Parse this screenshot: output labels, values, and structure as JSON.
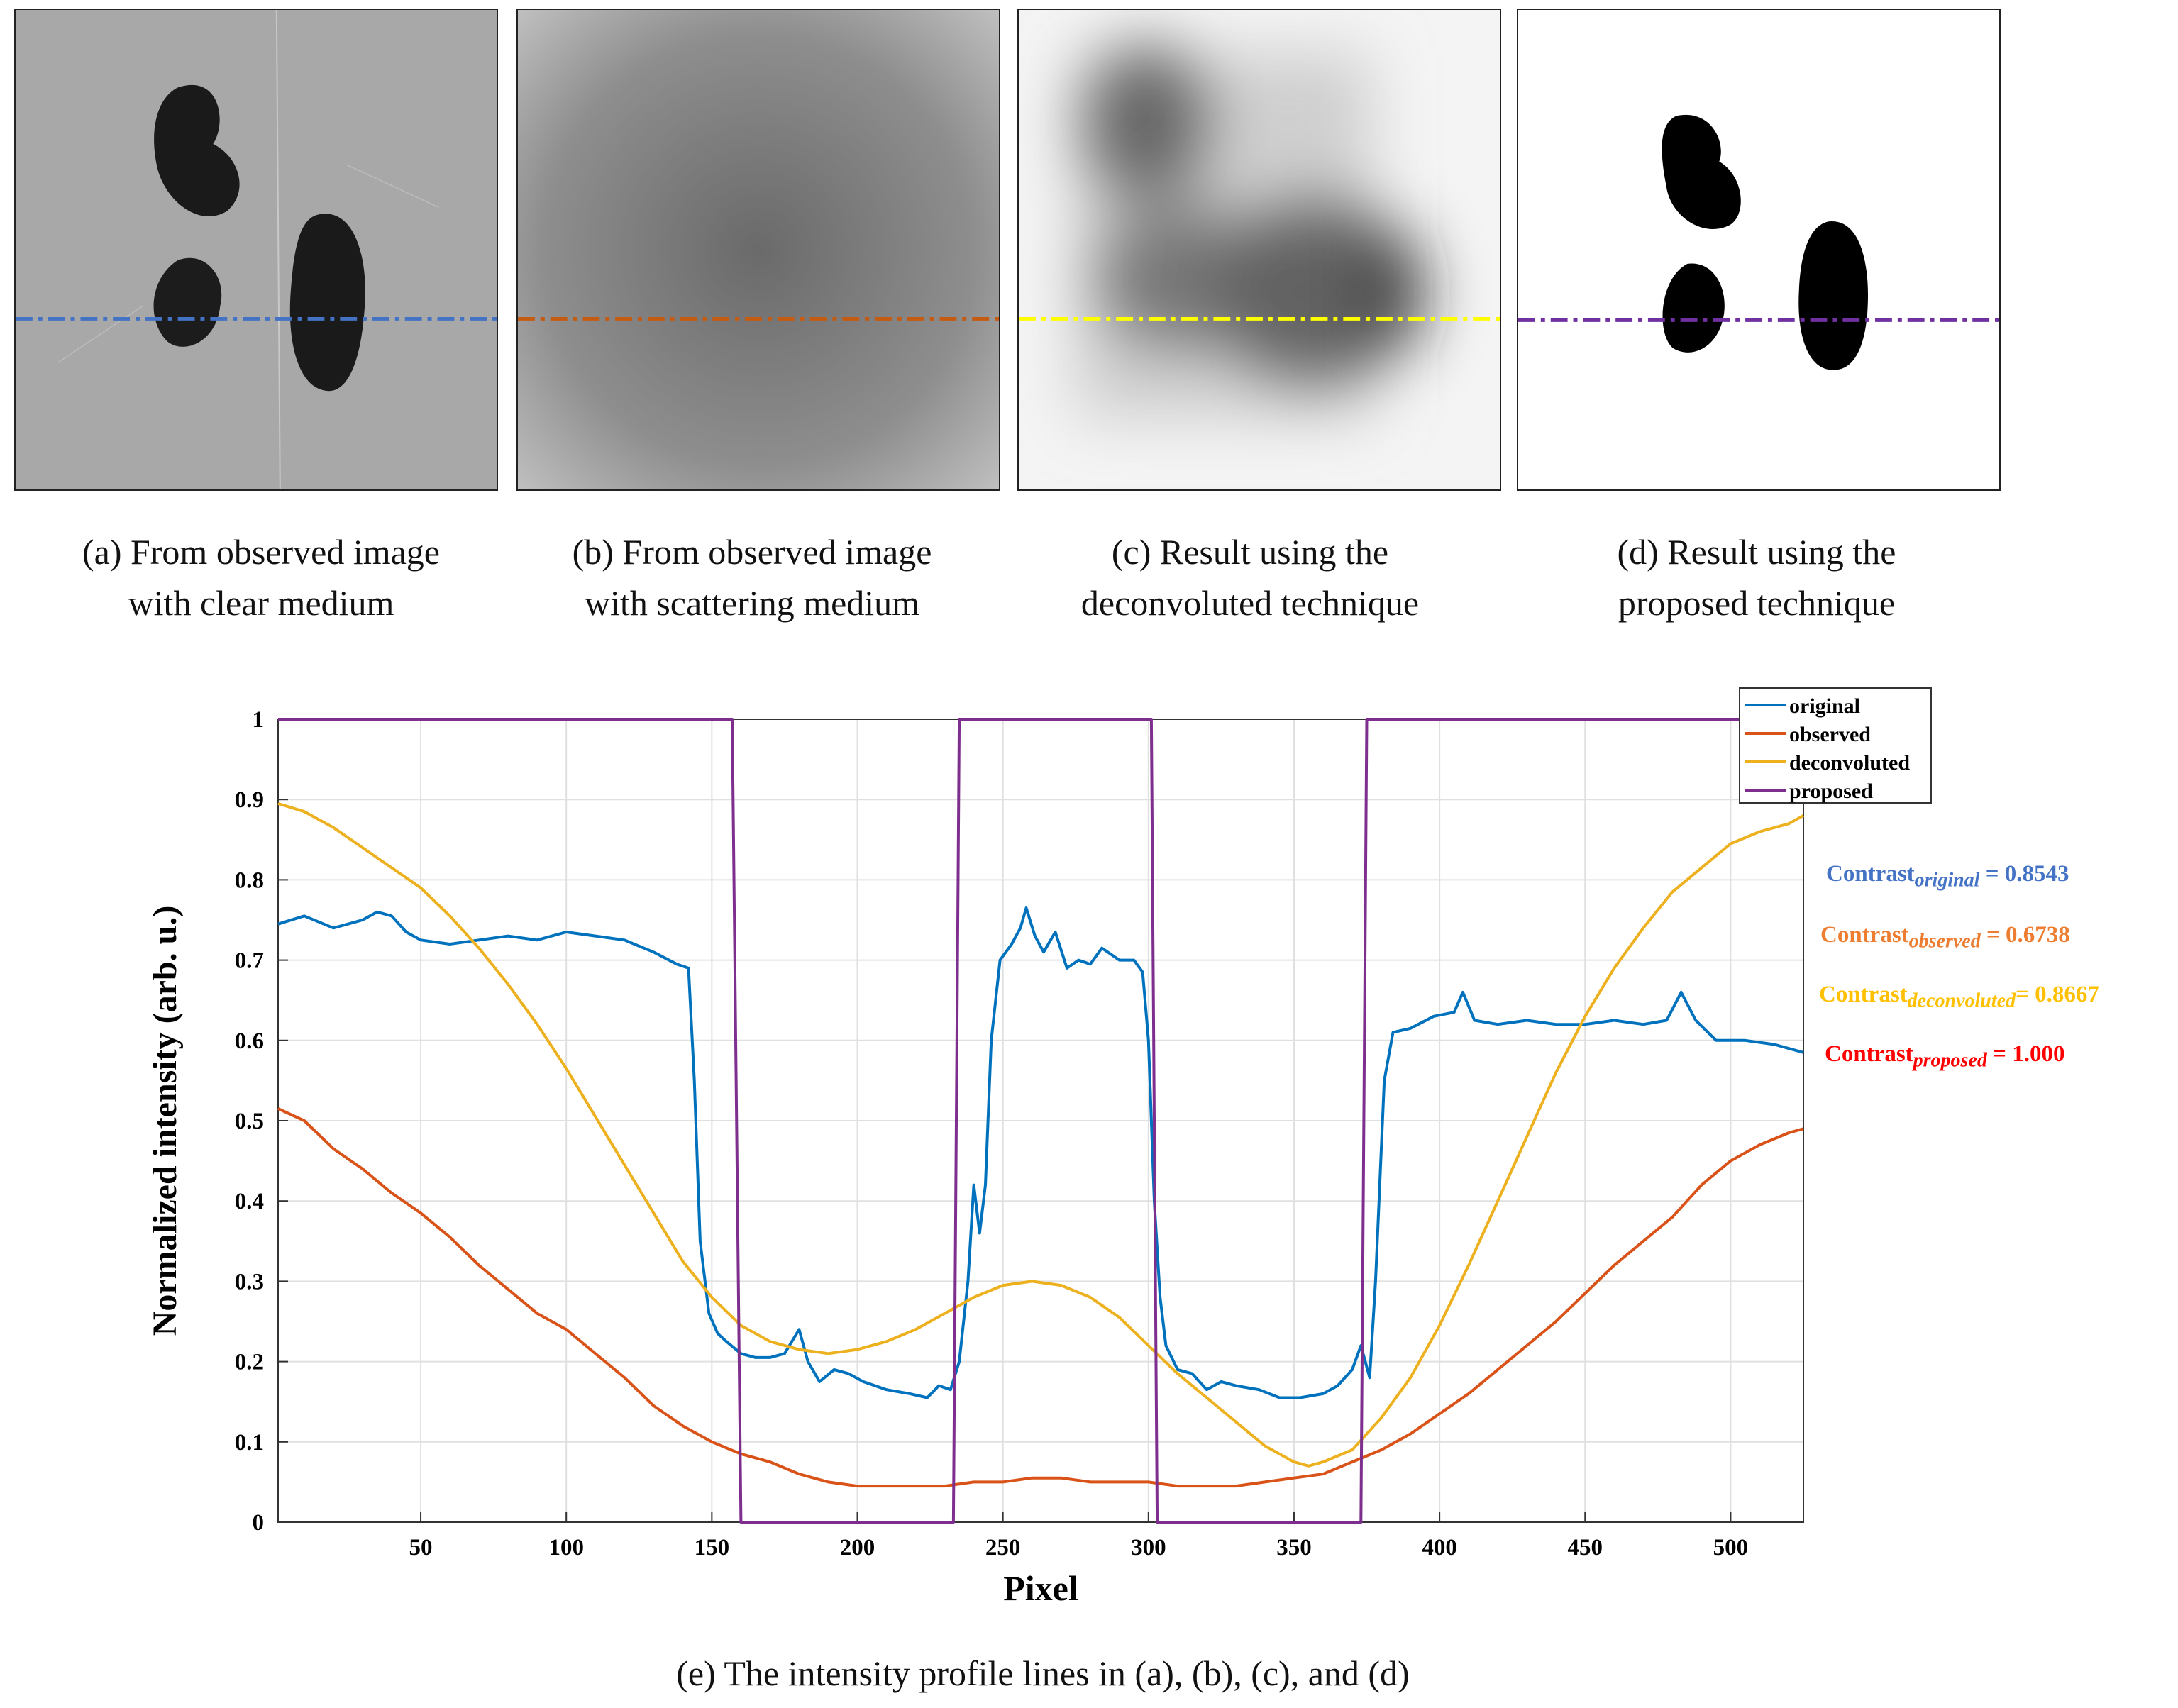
{
  "panels": [
    {
      "id": "a",
      "line1": "(a) From observed image",
      "line2": "with clear medium",
      "line_color": "#4472c4"
    },
    {
      "id": "b",
      "line1": "(b) From observed image",
      "line2": "with scattering medium",
      "line_color": "#c55a11"
    },
    {
      "id": "c",
      "line1": "(c) Result using the",
      "line2": "deconvoluted technique",
      "line_color": "#ffff00"
    },
    {
      "id": "d",
      "line1": "(d) Result using the",
      "line2": "proposed technique",
      "line_color": "#7030a0"
    }
  ],
  "figure_caption": "(e) The intensity profile lines in (a), (b), (c), and (d)",
  "contrasts": [
    {
      "prefix": "Contrast",
      "sub": "original",
      "value": "= 0.8543",
      "color": "#4472c4"
    },
    {
      "prefix": "Contrast",
      "sub": "observed",
      "value": "= 0.6738",
      "color": "#ed7d31"
    },
    {
      "prefix": "Contrast",
      "sub": "deconvoluted",
      "value": "= 0.8667",
      "color": "#ffc000"
    },
    {
      "prefix": "Contrast",
      "sub": "proposed",
      "value": "= 1.000",
      "color": "#ff0000"
    }
  ],
  "chart_data": {
    "type": "line",
    "title": "",
    "xlabel": "Pixel",
    "ylabel": "Normalized intensity (arb. u.)",
    "xlim": [
      1,
      525
    ],
    "ylim": [
      0,
      1
    ],
    "xticks": [
      50,
      100,
      150,
      200,
      250,
      300,
      350,
      400,
      450,
      500
    ],
    "yticks": [
      0,
      0.1,
      0.2,
      0.3,
      0.4,
      0.5,
      0.6,
      0.7,
      0.8,
      0.9,
      1
    ],
    "ytick_labels": [
      "0",
      "0.1",
      "0.2",
      "0.3",
      "0.4",
      "0.5",
      "0.6",
      "0.7",
      "0.8",
      "0.9",
      "1"
    ],
    "grid": true,
    "legend": "top-right",
    "series": [
      {
        "name": "original",
        "color": "#0072bd",
        "points": [
          [
            1,
            0.745
          ],
          [
            10,
            0.755
          ],
          [
            20,
            0.74
          ],
          [
            30,
            0.75
          ],
          [
            35,
            0.76
          ],
          [
            40,
            0.755
          ],
          [
            45,
            0.735
          ],
          [
            50,
            0.725
          ],
          [
            60,
            0.72
          ],
          [
            70,
            0.725
          ],
          [
            80,
            0.73
          ],
          [
            90,
            0.725
          ],
          [
            100,
            0.735
          ],
          [
            110,
            0.73
          ],
          [
            120,
            0.725
          ],
          [
            130,
            0.71
          ],
          [
            138,
            0.695
          ],
          [
            142,
            0.69
          ],
          [
            144,
            0.55
          ],
          [
            146,
            0.35
          ],
          [
            149,
            0.26
          ],
          [
            152,
            0.235
          ],
          [
            155,
            0.225
          ],
          [
            160,
            0.21
          ],
          [
            165,
            0.205
          ],
          [
            170,
            0.205
          ],
          [
            175,
            0.21
          ],
          [
            180,
            0.24
          ],
          [
            183,
            0.2
          ],
          [
            187,
            0.175
          ],
          [
            192,
            0.19
          ],
          [
            197,
            0.185
          ],
          [
            202,
            0.175
          ],
          [
            210,
            0.165
          ],
          [
            218,
            0.16
          ],
          [
            224,
            0.155
          ],
          [
            228,
            0.17
          ],
          [
            232,
            0.165
          ],
          [
            235,
            0.2
          ],
          [
            238,
            0.3
          ],
          [
            240,
            0.42
          ],
          [
            242,
            0.36
          ],
          [
            244,
            0.42
          ],
          [
            246,
            0.6
          ],
          [
            249,
            0.7
          ],
          [
            253,
            0.72
          ],
          [
            256,
            0.74
          ],
          [
            258,
            0.765
          ],
          [
            261,
            0.73
          ],
          [
            264,
            0.71
          ],
          [
            268,
            0.735
          ],
          [
            272,
            0.69
          ],
          [
            276,
            0.7
          ],
          [
            280,
            0.695
          ],
          [
            284,
            0.715
          ],
          [
            290,
            0.7
          ],
          [
            295,
            0.7
          ],
          [
            298,
            0.685
          ],
          [
            300,
            0.6
          ],
          [
            302,
            0.4
          ],
          [
            304,
            0.28
          ],
          [
            306,
            0.22
          ],
          [
            310,
            0.19
          ],
          [
            315,
            0.185
          ],
          [
            320,
            0.165
          ],
          [
            325,
            0.175
          ],
          [
            330,
            0.17
          ],
          [
            338,
            0.165
          ],
          [
            345,
            0.155
          ],
          [
            352,
            0.155
          ],
          [
            360,
            0.16
          ],
          [
            365,
            0.17
          ],
          [
            370,
            0.19
          ],
          [
            373,
            0.22
          ],
          [
            376,
            0.18
          ],
          [
            378,
            0.3
          ],
          [
            381,
            0.55
          ],
          [
            384,
            0.61
          ],
          [
            390,
            0.615
          ],
          [
            398,
            0.63
          ],
          [
            405,
            0.635
          ],
          [
            408,
            0.66
          ],
          [
            412,
            0.625
          ],
          [
            420,
            0.62
          ],
          [
            430,
            0.625
          ],
          [
            440,
            0.62
          ],
          [
            450,
            0.62
          ],
          [
            460,
            0.625
          ],
          [
            470,
            0.62
          ],
          [
            478,
            0.625
          ],
          [
            483,
            0.66
          ],
          [
            488,
            0.625
          ],
          [
            495,
            0.6
          ],
          [
            505,
            0.6
          ],
          [
            515,
            0.595
          ],
          [
            525,
            0.585
          ]
        ]
      },
      {
        "name": "observed",
        "color": "#d95319",
        "points": [
          [
            1,
            0.515
          ],
          [
            10,
            0.5
          ],
          [
            20,
            0.465
          ],
          [
            30,
            0.44
          ],
          [
            40,
            0.41
          ],
          [
            50,
            0.385
          ],
          [
            60,
            0.355
          ],
          [
            70,
            0.32
          ],
          [
            80,
            0.29
          ],
          [
            90,
            0.26
          ],
          [
            100,
            0.24
          ],
          [
            110,
            0.21
          ],
          [
            120,
            0.18
          ],
          [
            130,
            0.145
          ],
          [
            140,
            0.12
          ],
          [
            150,
            0.1
          ],
          [
            160,
            0.085
          ],
          [
            170,
            0.075
          ],
          [
            180,
            0.06
          ],
          [
            190,
            0.05
          ],
          [
            200,
            0.045
          ],
          [
            210,
            0.045
          ],
          [
            220,
            0.045
          ],
          [
            230,
            0.045
          ],
          [
            240,
            0.05
          ],
          [
            250,
            0.05
          ],
          [
            260,
            0.055
          ],
          [
            270,
            0.055
          ],
          [
            280,
            0.05
          ],
          [
            290,
            0.05
          ],
          [
            300,
            0.05
          ],
          [
            310,
            0.045
          ],
          [
            320,
            0.045
          ],
          [
            330,
            0.045
          ],
          [
            340,
            0.05
          ],
          [
            350,
            0.055
          ],
          [
            360,
            0.06
          ],
          [
            370,
            0.075
          ],
          [
            380,
            0.09
          ],
          [
            390,
            0.11
          ],
          [
            400,
            0.135
          ],
          [
            410,
            0.16
          ],
          [
            420,
            0.19
          ],
          [
            430,
            0.22
          ],
          [
            440,
            0.25
          ],
          [
            450,
            0.285
          ],
          [
            460,
            0.32
          ],
          [
            470,
            0.35
          ],
          [
            480,
            0.38
          ],
          [
            490,
            0.42
          ],
          [
            500,
            0.45
          ],
          [
            510,
            0.47
          ],
          [
            520,
            0.485
          ],
          [
            525,
            0.49
          ]
        ]
      },
      {
        "name": "deconvoluted",
        "color": "#edb120",
        "points": [
          [
            1,
            0.895
          ],
          [
            10,
            0.885
          ],
          [
            20,
            0.865
          ],
          [
            30,
            0.84
          ],
          [
            40,
            0.815
          ],
          [
            50,
            0.79
          ],
          [
            60,
            0.755
          ],
          [
            70,
            0.715
          ],
          [
            80,
            0.67
          ],
          [
            90,
            0.62
          ],
          [
            100,
            0.565
          ],
          [
            110,
            0.505
          ],
          [
            120,
            0.445
          ],
          [
            130,
            0.385
          ],
          [
            140,
            0.325
          ],
          [
            150,
            0.28
          ],
          [
            160,
            0.245
          ],
          [
            170,
            0.225
          ],
          [
            180,
            0.215
          ],
          [
            190,
            0.21
          ],
          [
            200,
            0.215
          ],
          [
            210,
            0.225
          ],
          [
            220,
            0.24
          ],
          [
            230,
            0.26
          ],
          [
            240,
            0.28
          ],
          [
            250,
            0.295
          ],
          [
            260,
            0.3
          ],
          [
            270,
            0.295
          ],
          [
            280,
            0.28
          ],
          [
            290,
            0.255
          ],
          [
            300,
            0.22
          ],
          [
            310,
            0.185
          ],
          [
            320,
            0.155
          ],
          [
            330,
            0.125
          ],
          [
            340,
            0.095
          ],
          [
            350,
            0.075
          ],
          [
            355,
            0.07
          ],
          [
            360,
            0.075
          ],
          [
            370,
            0.09
          ],
          [
            380,
            0.13
          ],
          [
            390,
            0.18
          ],
          [
            400,
            0.245
          ],
          [
            410,
            0.32
          ],
          [
            420,
            0.4
          ],
          [
            430,
            0.48
          ],
          [
            440,
            0.56
          ],
          [
            450,
            0.63
          ],
          [
            460,
            0.69
          ],
          [
            470,
            0.74
          ],
          [
            480,
            0.785
          ],
          [
            490,
            0.815
          ],
          [
            500,
            0.845
          ],
          [
            510,
            0.86
          ],
          [
            520,
            0.87
          ],
          [
            525,
            0.88
          ]
        ]
      },
      {
        "name": "proposed",
        "color": "#7e2f8e",
        "points": [
          [
            1,
            1
          ],
          [
            157,
            1
          ],
          [
            160,
            0
          ],
          [
            233,
            0
          ],
          [
            235,
            1
          ],
          [
            301,
            1
          ],
          [
            303,
            0
          ],
          [
            373,
            0
          ],
          [
            375,
            1
          ],
          [
            525,
            1
          ]
        ]
      }
    ]
  }
}
